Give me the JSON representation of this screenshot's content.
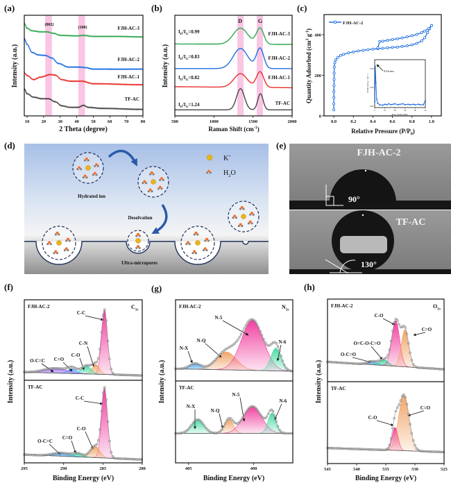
{
  "figure": {
    "panel_labels": [
      "(a)",
      "(b)",
      "(c)",
      "(d)",
      "(e)",
      "(f)",
      "(g)",
      "(h)"
    ]
  },
  "chart_data": [
    {
      "id": "a",
      "type": "line",
      "xlabel": "2 Theta (degree)",
      "ylabel": "Intensity (a.u.)",
      "xlim": [
        8.3,
        80
      ],
      "ylim": [
        0,
        10
      ],
      "x_ticks": [
        "10",
        "20",
        "30",
        "40",
        "50",
        "60",
        "70",
        "80"
      ],
      "annotations": [
        "(002)",
        "(100)"
      ],
      "highlight_bands": [
        [
          21,
          25
        ],
        [
          41,
          45
        ]
      ],
      "band_color": "#f9c6e3",
      "series": [
        {
          "name": "FJH-AC-3",
          "color": "#2fa84f",
          "points": [
            [
              8.3,
              9.2
            ],
            [
              10,
              8.7
            ],
            [
              13,
              8.45
            ],
            [
              18,
              8.35
            ],
            [
              22,
              8.35
            ],
            [
              26,
              8.2
            ],
            [
              30,
              8.0
            ],
            [
              40,
              7.95
            ],
            [
              44,
              8.0
            ],
            [
              50,
              7.9
            ],
            [
              65,
              7.9
            ],
            [
              80,
              7.85
            ]
          ]
        },
        {
          "name": "FJH-AC-2",
          "color": "#1f6fe0",
          "points": [
            [
              8.3,
              7.7
            ],
            [
              10,
              7.1
            ],
            [
              13,
              6.3
            ],
            [
              17,
              6.05
            ],
            [
              21,
              6.0
            ],
            [
              25,
              5.75
            ],
            [
              29,
              5.2
            ],
            [
              35,
              4.85
            ],
            [
              42,
              4.85
            ],
            [
              45,
              4.8
            ],
            [
              50,
              4.65
            ],
            [
              80,
              4.65
            ]
          ]
        },
        {
          "name": "FJH-AC-1",
          "color": "#e8302a",
          "points": [
            [
              8.3,
              4.3
            ],
            [
              10,
              4.0
            ],
            [
              14,
              3.6
            ],
            [
              18,
              3.85
            ],
            [
              24,
              4.1
            ],
            [
              27,
              4.05
            ],
            [
              31,
              3.6
            ],
            [
              36,
              3.45
            ],
            [
              43,
              3.45
            ],
            [
              50,
              3.2
            ],
            [
              80,
              3.1
            ]
          ]
        },
        {
          "name": "TF-AC",
          "color": "#444444",
          "points": [
            [
              8.3,
              2.7
            ],
            [
              10,
              2.2
            ],
            [
              14,
              1.85
            ],
            [
              19,
              1.7
            ],
            [
              23,
              1.7
            ],
            [
              27,
              1.4
            ],
            [
              31,
              1.0
            ],
            [
              36,
              0.85
            ],
            [
              41,
              0.85
            ],
            [
              44,
              1.05
            ],
            [
              47,
              0.85
            ],
            [
              55,
              0.75
            ],
            [
              80,
              0.65
            ]
          ]
        }
      ]
    },
    {
      "id": "b",
      "type": "line",
      "xlabel": {
        "text": "Raman Shift (cm",
        "sup": "-1",
        "end": ")"
      },
      "ylabel": "Intensity (a.u.)",
      "xlim": [
        500,
        2000
      ],
      "ylim": [
        0,
        10
      ],
      "x_ticks": [
        "500",
        "1000",
        "1500",
        "2000"
      ],
      "band_labels": [
        "D",
        "G"
      ],
      "highlight_bands": [
        [
          1300,
          1380
        ],
        [
          1547,
          1627
        ]
      ],
      "band_color": "#f9c6e3",
      "ratio_symbol": {
        "I": "I",
        "D": "D",
        "slash": "/I",
        "G": "G",
        "eq": "="
      },
      "series": [
        {
          "name": "FJH-AC-3",
          "color": "#2fa84f",
          "ratio": "0.99",
          "baseline": [
            7.15,
            7.1
          ],
          "peaks": [
            {
              "band": "D",
              "center": 1340,
              "height": 1.6,
              "fwhm": 220
            },
            {
              "band": "G",
              "center": 1590,
              "height": 1.6,
              "fwhm": 110
            }
          ]
        },
        {
          "name": "FJH-AC-2",
          "color": "#1f6fe0",
          "ratio": "0.83",
          "baseline": [
            4.7,
            4.7
          ],
          "peaks": [
            {
              "band": "D",
              "center": 1340,
              "height": 2.0,
              "fwhm": 220
            },
            {
              "band": "G",
              "center": 1590,
              "height": 2.0,
              "fwhm": 110
            }
          ]
        },
        {
          "name": "FJH-AC-1",
          "color": "#e8302a",
          "ratio": "0.82",
          "baseline": [
            2.9,
            2.8
          ],
          "peaks": [
            {
              "band": "D",
              "center": 1340,
              "height": 1.35,
              "fwhm": 200
            },
            {
              "band": "G",
              "center": 1590,
              "height": 1.55,
              "fwhm": 110
            }
          ]
        },
        {
          "name": "TF-AC",
          "color": "#444444",
          "ratio": "1.24",
          "baseline": [
            0.6,
            0.6
          ],
          "peaks": [
            {
              "band": "D",
              "center": 1340,
              "height": 2.1,
              "fwhm": 120
            },
            {
              "band": "G",
              "center": 1595,
              "height": 1.6,
              "fwhm": 80
            }
          ]
        }
      ]
    },
    {
      "id": "c",
      "type": "scatter",
      "xlabel": {
        "text": "Relative Pressure (P/P",
        "sub": "0",
        "end": ")"
      },
      "ylabel": {
        "text": "Quantity Adsorbed (cm",
        "sup1": "3",
        "mid": " g",
        "sup2": "-1",
        "end": ")"
      },
      "xlim": [
        -0.1,
        1.1
      ],
      "ylim": [
        0,
        499
      ],
      "x_ticks": [
        "0.0",
        "0.2",
        "0.4",
        "0.6",
        "0.8",
        "1.0"
      ],
      "y_ticks": [
        "0",
        "200",
        "400"
      ],
      "legend": {
        "label": "FJH-AC-2",
        "position": "top-left"
      },
      "color": "#1f6fe0",
      "adsorption": [
        [
          0.0,
          30
        ],
        [
          0.0,
          60
        ],
        [
          0.001,
          90
        ],
        [
          0.001,
          120
        ],
        [
          0.002,
          150
        ],
        [
          0.003,
          180
        ],
        [
          0.004,
          210
        ],
        [
          0.005,
          240
        ],
        [
          0.01,
          262
        ],
        [
          0.02,
          275
        ],
        [
          0.04,
          288
        ],
        [
          0.07,
          298
        ],
        [
          0.1,
          303
        ],
        [
          0.15,
          310
        ],
        [
          0.2,
          315
        ],
        [
          0.25,
          320
        ],
        [
          0.3,
          323
        ],
        [
          0.35,
          326
        ],
        [
          0.4,
          329
        ],
        [
          0.45,
          331
        ],
        [
          0.5,
          333
        ],
        [
          0.55,
          335
        ],
        [
          0.6,
          337
        ],
        [
          0.65,
          339
        ],
        [
          0.7,
          342
        ],
        [
          0.75,
          345
        ],
        [
          0.8,
          350
        ],
        [
          0.85,
          357
        ],
        [
          0.9,
          370
        ],
        [
          0.93,
          385
        ],
        [
          0.96,
          410
        ],
        [
          0.98,
          430
        ],
        [
          1.0,
          445
        ]
      ],
      "desorption": [
        [
          1.0,
          445
        ],
        [
          0.97,
          430
        ],
        [
          0.93,
          418
        ],
        [
          0.9,
          410
        ],
        [
          0.85,
          401
        ],
        [
          0.8,
          395
        ],
        [
          0.75,
          389
        ],
        [
          0.7,
          384
        ],
        [
          0.65,
          380
        ],
        [
          0.6,
          376
        ],
        [
          0.55,
          372
        ],
        [
          0.5,
          368
        ],
        [
          0.47,
          366
        ],
        [
          0.45,
          335
        ]
      ],
      "inset": {
        "xlabel": "Pore width (nm)",
        "ylabel": "dV/dD (cm³ g⁻¹ nm⁻¹)",
        "annotation": "0.64 nm",
        "xlim": [
          0,
          50
        ],
        "ylim": [
          -0.003,
          0.099
        ],
        "x_ticks": [
          "0",
          "10",
          "20",
          "30",
          "40",
          "50"
        ],
        "y_ticks": [
          "0.00",
          "0.04",
          "0.08"
        ],
        "points": [
          [
            0.2,
            0.01
          ],
          [
            0.64,
            0.085
          ],
          [
            1.2,
            0.05
          ],
          [
            2,
            0.015
          ],
          [
            3,
            0.006
          ],
          [
            5,
            0.003
          ],
          [
            8,
            0.002
          ],
          [
            10,
            0.004
          ],
          [
            12,
            0.003
          ],
          [
            14,
            0.005
          ],
          [
            16,
            0.003
          ],
          [
            18,
            0.004
          ],
          [
            20,
            0.005
          ],
          [
            23,
            0.003
          ],
          [
            25,
            0.004
          ],
          [
            28,
            0.005
          ],
          [
            30,
            0.003
          ],
          [
            33,
            0.004
          ],
          [
            35,
            0.003
          ],
          [
            38,
            0.004
          ],
          [
            40,
            0.003
          ],
          [
            43,
            0.004
          ],
          [
            45,
            0.003
          ],
          [
            48,
            0.003
          ],
          [
            50,
            0.012
          ]
        ]
      }
    },
    {
      "id": "f",
      "type": "area",
      "element": {
        "base": "C",
        "sub": "1s"
      },
      "xlabel": "Binding Energy (eV)",
      "ylabel": "Intensity (a.u.)",
      "xlim": [
        295,
        280
      ],
      "x_ticks": [
        "295",
        "290",
        "285",
        "280"
      ],
      "samples": [
        {
          "name": "FJH-AC-2",
          "baseline": [
            0.1,
            0.06
          ],
          "components": [
            {
              "label": "C-C",
              "center": 284.8,
              "height": 0.8,
              "fwhm": 0.9,
              "color": "#f0379a"
            },
            {
              "label": "C-N",
              "center": 285.9,
              "height": 0.12,
              "fwhm": 1.1,
              "color": "#f0a060"
            },
            {
              "label": "C-O",
              "center": 287.1,
              "height": 0.1,
              "fwhm": 1.4,
              "color": "#3fd8a0"
            },
            {
              "label": "C=O",
              "center": 288.9,
              "height": 0.06,
              "fwhm": 1.4,
              "color": "#4aa8f0"
            },
            {
              "label": "O-C=C",
              "center": 291.0,
              "height": 0.06,
              "fwhm": 3.5,
              "color": "#a070f0"
            }
          ]
        },
        {
          "name": "TF-AC",
          "baseline": [
            0.1,
            0.04
          ],
          "components": [
            {
              "label": "C-C",
              "center": 284.8,
              "height": 0.84,
              "fwhm": 0.9,
              "color": "#f0379a"
            },
            {
              "label": "C-O",
              "center": 286.0,
              "height": 0.14,
              "fwhm": 1.4,
              "color": "#f0a060"
            },
            {
              "label": "C=O",
              "center": 288.2,
              "height": 0.04,
              "fwhm": 1.5,
              "color": "#3fd8a0"
            },
            {
              "label": "O-C=C",
              "center": 290.3,
              "height": 0.04,
              "fwhm": 2.5,
              "color": "#4aa8f0"
            }
          ]
        }
      ]
    },
    {
      "id": "g",
      "type": "area",
      "element": {
        "base": "N",
        "sub": "1s"
      },
      "xlabel": "Binding Energy (eV)",
      "ylabel": "Intensity (a.u.)",
      "xlim": [
        406,
        397
      ],
      "x_ticks": [
        "405",
        "400"
      ],
      "samples": [
        {
          "name": "FJH-AC-2",
          "baseline": [
            0.15,
            0.12
          ],
          "components": [
            {
              "label": "N-X",
              "center": 404.5,
              "height": 0.07,
              "fwhm": 1.0,
              "color": "#4aa8f0"
            },
            {
              "label": "N-Q",
              "center": 402.1,
              "height": 0.22,
              "fwhm": 1.8,
              "color": "#f0a060"
            },
            {
              "label": "N-5",
              "center": 400.1,
              "height": 0.62,
              "fwhm": 2.0,
              "color": "#f0379a"
            },
            {
              "label": "N-6",
              "center": 398.3,
              "height": 0.28,
              "fwhm": 0.9,
              "color": "#3fd8a0"
            }
          ]
        },
        {
          "name": "TF-AC",
          "baseline": [
            0.36,
            0.36
          ],
          "components": [
            {
              "label": "N-X",
              "center": 404.3,
              "height": 0.17,
              "fwhm": 1.1,
              "color": "#3fd8a0"
            },
            {
              "label": "N-Q",
              "center": 401.9,
              "height": 0.17,
              "fwhm": 0.8,
              "color": "#f0a060"
            },
            {
              "label": "N-5",
              "center": 400.1,
              "height": 0.33,
              "fwhm": 1.7,
              "color": "#f0379a"
            },
            {
              "label": "N-6",
              "center": 398.6,
              "height": 0.25,
              "fwhm": 0.7,
              "color": "#3fd8a0"
            }
          ]
        }
      ]
    },
    {
      "id": "h",
      "type": "area",
      "element": {
        "base": "O",
        "sub": "1s"
      },
      "xlabel": "Binding Energy (eV)",
      "ylabel": "Intensity (a.u.)",
      "xlim": [
        545,
        525
      ],
      "x_ticks": [
        "545",
        "540",
        "535",
        "530",
        "525"
      ],
      "samples": [
        {
          "name": "FJH-AC-2",
          "baseline": [
            0.24,
            0.15
          ],
          "components": [
            {
              "label": "O-C=O",
              "center": 537.3,
              "height": 0.04,
              "fwhm": 2.0,
              "color": "#4aa8f0"
            },
            {
              "label": "O=C-O-C=O",
              "center": 535.3,
              "height": 0.07,
              "fwhm": 1.8,
              "color": "#3fd8a0"
            },
            {
              "label": "C-O",
              "center": 533.3,
              "height": 0.55,
              "fwhm": 1.6,
              "color": "#f0379a"
            },
            {
              "label": "C=O",
              "center": 531.7,
              "height": 0.45,
              "fwhm": 1.5,
              "color": "#f0a060"
            }
          ]
        },
        {
          "name": "TF-AC",
          "baseline": [
            0.19,
            0.14
          ],
          "components": [
            {
              "label": "C-O",
              "center": 533.4,
              "height": 0.28,
              "fwhm": 1.2,
              "color": "#f0379a"
            },
            {
              "label": "C=O",
              "center": 531.9,
              "height": 0.68,
              "fwhm": 2.1,
              "color": "#f0a060"
            }
          ]
        }
      ]
    }
  ],
  "schematic_d": {
    "legend": {
      "k_base": "K",
      "k_sup": "+",
      "h2o_h": "H",
      "h2o_sub": "2",
      "h2o_o": "O"
    },
    "labels": {
      "hydrated_ion": "Hydrated ion",
      "desolvation": "Desolvation",
      "micropores": "Ultra-micropores"
    },
    "colors": {
      "k_ion": "#e8b420",
      "oxygen": "#f07030",
      "hydrogen": "#777777",
      "arrow": "#2a5aa8"
    }
  },
  "photos_e": {
    "top": {
      "sample": "FJH-AC-2",
      "angle": "90°"
    },
    "bottom": {
      "sample": "TF-AC",
      "angle": "130°"
    }
  }
}
